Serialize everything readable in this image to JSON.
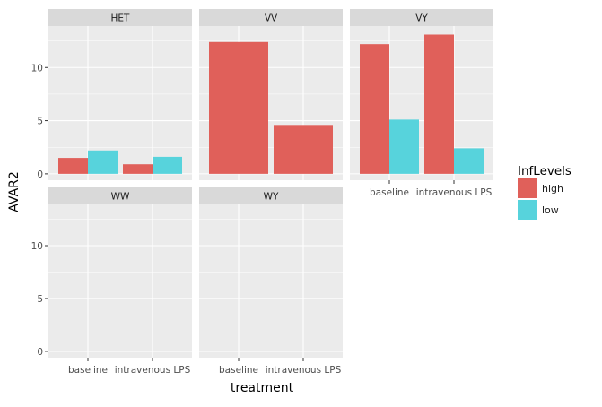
{
  "chart_data": {
    "type": "bar",
    "xlabel": "treatment",
    "ylabel": "AVAR2",
    "categories": [
      "baseline",
      "intravenous LPS"
    ],
    "ylim": [
      -0.6,
      13.9
    ],
    "yticks": [
      0,
      5,
      10
    ],
    "legend": {
      "title": "InfLevels",
      "position": "right",
      "entries": [
        {
          "name": "high",
          "color": "#e0605a"
        },
        {
          "name": "low",
          "color": "#57d3dc"
        }
      ]
    },
    "panels": [
      {
        "strip": "HET",
        "bars": [
          {
            "category": "baseline",
            "group": "high",
            "value": 1.5
          },
          {
            "category": "baseline",
            "group": "low",
            "value": 2.2
          },
          {
            "category": "intravenous LPS",
            "group": "high",
            "value": 0.9
          },
          {
            "category": "intravenous LPS",
            "group": "low",
            "value": 1.6
          }
        ]
      },
      {
        "strip": "VV",
        "bars": [
          {
            "category": "baseline",
            "group": "high",
            "value": 12.4
          },
          {
            "category": "intravenous LPS",
            "group": "high",
            "value": 4.6
          }
        ]
      },
      {
        "strip": "VY",
        "bars": [
          {
            "category": "baseline",
            "group": "high",
            "value": 12.2
          },
          {
            "category": "baseline",
            "group": "low",
            "value": 5.1
          },
          {
            "category": "intravenous LPS",
            "group": "high",
            "value": 13.1
          },
          {
            "category": "intravenous LPS",
            "group": "low",
            "value": 2.4
          }
        ]
      },
      {
        "strip": "WW",
        "bars": []
      },
      {
        "strip": "WY",
        "bars": []
      }
    ],
    "grid": true,
    "colors": {
      "panel_bg": "#ebebeb",
      "strip_bg": "#d9d9d9",
      "grid": "#ffffff",
      "text": "#4d4d4d"
    }
  }
}
